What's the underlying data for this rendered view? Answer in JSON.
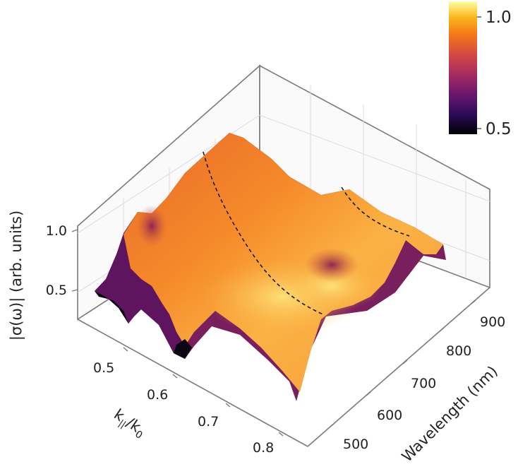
{
  "chart_data": {
    "type": "surface3d",
    "x_axis": {
      "label": "k||/k0",
      "label_main": "k",
      "label_sub1": "||",
      "label_mid": "/k",
      "label_sub2": "0",
      "range": [
        0.42,
        0.85
      ],
      "ticks": [
        "0.5",
        "0.6",
        "0.7",
        "0.8"
      ]
    },
    "y_axis": {
      "label": "Wavelength (nm)",
      "range": [
        450,
        950
      ],
      "ticks": [
        "500",
        "600",
        "700",
        "800",
        "900"
      ]
    },
    "z_axis": {
      "label": "|σ(ω)| (arb. units)",
      "range": [
        0.35,
        1.1
      ],
      "ticks": [
        "0.5",
        "1.0"
      ]
    },
    "colorbar": {
      "colormap": "inferno",
      "max_label": "1.0",
      "min_label": "0.5",
      "range": [
        0.5,
        1.0
      ]
    },
    "grid": true,
    "annotations": [
      "dashed curve on surface near k||/k0 ≈ 0.55–0.8 tracing the resonance ridge",
      "second dashed curve near wavelength ≈ 800–900 nm"
    ],
    "colors": {
      "low": "#000004",
      "mid": "#b7377a",
      "high": "#fcffa4",
      "pane": "#888888",
      "gridline": "#dddddd"
    }
  }
}
